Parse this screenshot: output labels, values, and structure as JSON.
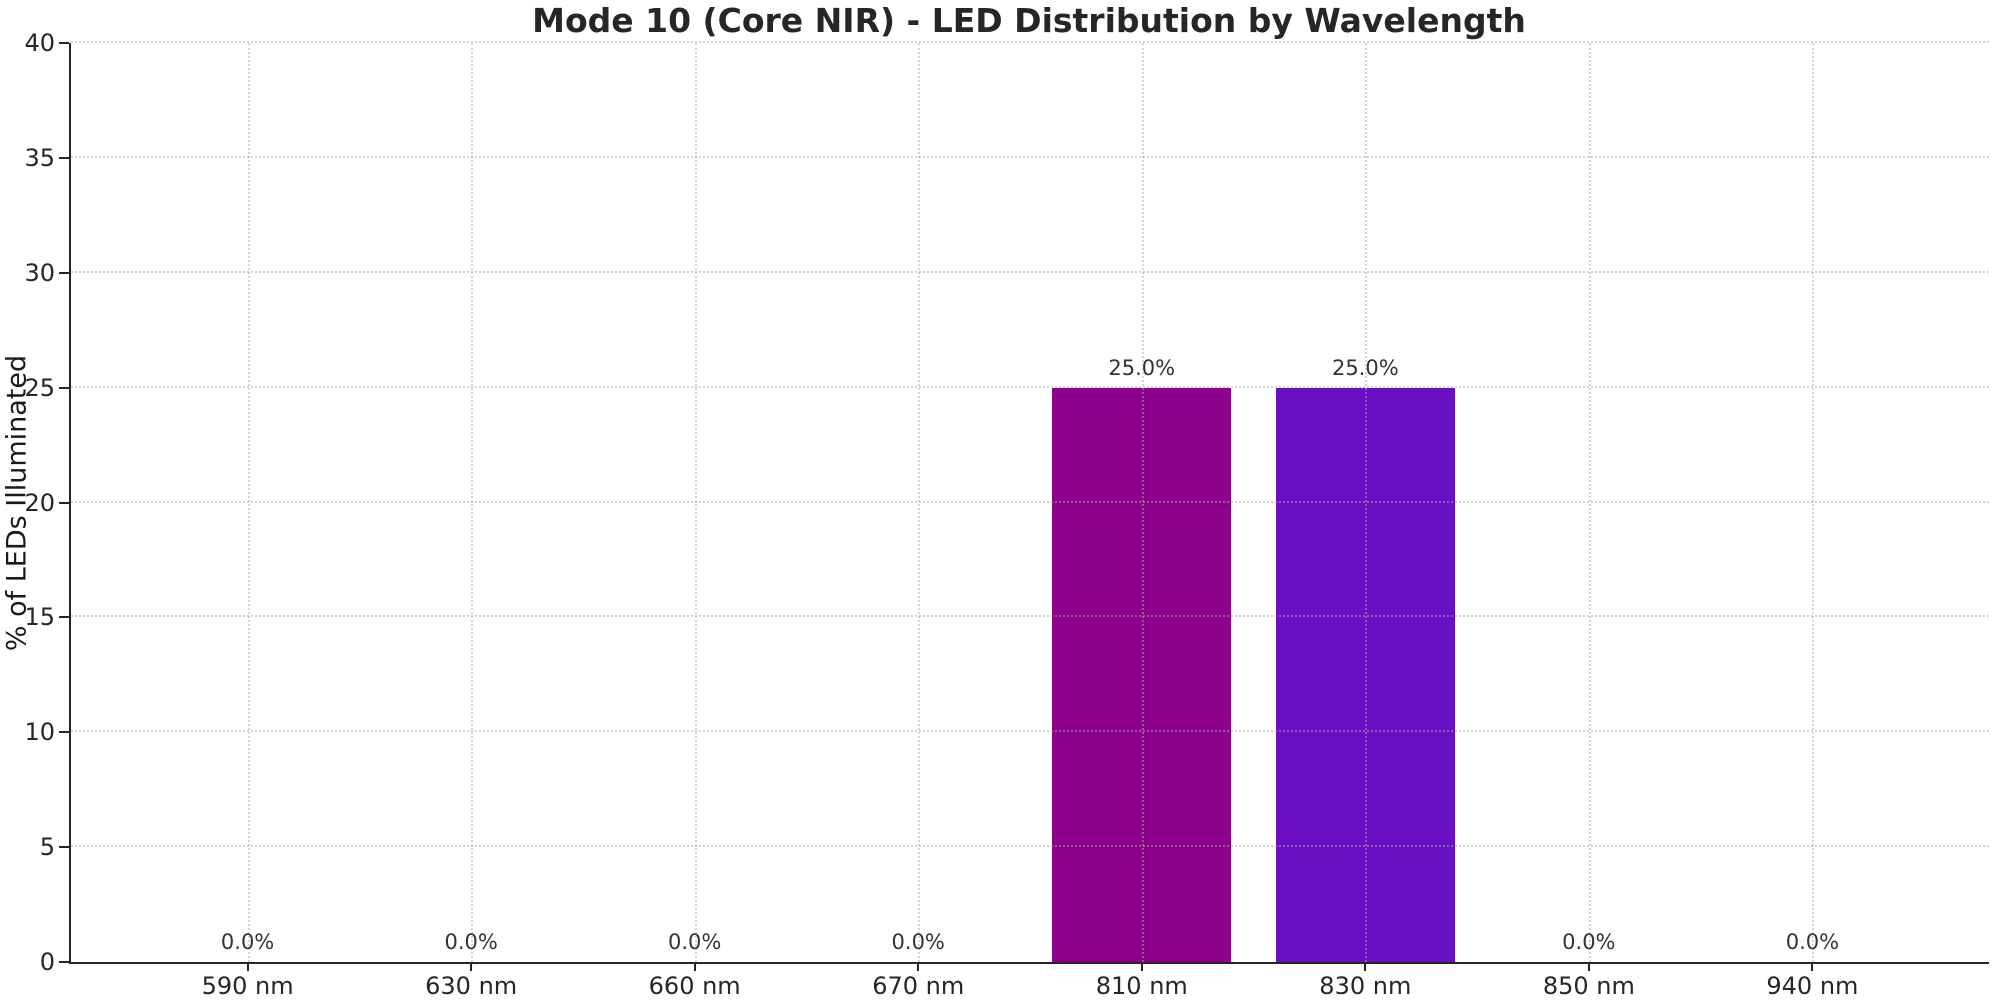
{
  "chart_data": {
    "type": "bar",
    "title": "Mode 10 (Core NIR) - LED Distribution by Wavelength",
    "xlabel": "",
    "ylabel": "% of LEDs Illuminated",
    "categories": [
      "590 nm",
      "630 nm",
      "660 nm",
      "670 nm",
      "810 nm",
      "830 nm",
      "850 nm",
      "940 nm"
    ],
    "values": [
      0.0,
      0.0,
      0.0,
      0.0,
      25.0,
      25.0,
      0.0,
      0.0
    ],
    "value_labels": [
      "0.0%",
      "0.0%",
      "0.0%",
      "0.0%",
      "25.0%",
      "25.0%",
      "0.0%",
      "0.0%"
    ],
    "bar_colors": [
      null,
      null,
      null,
      null,
      "#8C008C",
      "#6A10C2",
      null,
      null
    ],
    "ylim": [
      0,
      40
    ],
    "yticks": [
      0,
      5,
      10,
      15,
      20,
      25,
      30,
      35,
      40
    ],
    "grid": "dotted",
    "grid_over_bars": true,
    "legend": null,
    "background_color": "#ffffff",
    "text_color": "#262626"
  }
}
